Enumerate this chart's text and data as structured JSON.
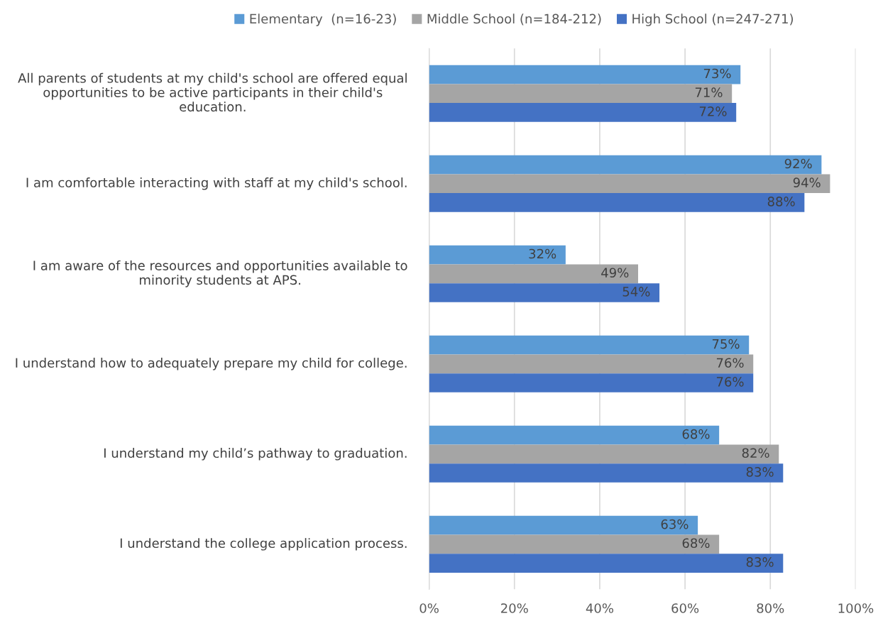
{
  "chart_data": {
    "type": "bar",
    "orientation": "horizontal",
    "categories": [
      "All parents of students at my child's school are offered equal opportunities to be active participants in their child's education.",
      "I am comfortable interacting with staff at my child's school.",
      "I am aware of the resources and opportunities available to minority students at APS.",
      "I understand how to adequately prepare my child for college.",
      "I understand my child’s pathway to graduation.",
      "I understand the college application process."
    ],
    "series": [
      {
        "name": "Elementary  (n=16-23)",
        "color": "#5b9bd5",
        "values": [
          73,
          92,
          32,
          75,
          68,
          63
        ],
        "value_labels": [
          "73%",
          "92%",
          "32%",
          "75%",
          "68%",
          "63%"
        ]
      },
      {
        "name": "Middle School (n=184-212)",
        "color": "#a5a5a5",
        "values": [
          71,
          94,
          49,
          76,
          82,
          68
        ],
        "value_labels": [
          "71%",
          "94%",
          "49%",
          "76%",
          "82%",
          "68%"
        ]
      },
      {
        "name": "High School (n=247-271)",
        "color": "#4472c4",
        "values": [
          72,
          88,
          54,
          76,
          83,
          83
        ],
        "value_labels": [
          "72%",
          "88%",
          "54%",
          "76%",
          "83%",
          "83%"
        ]
      }
    ],
    "xlim": [
      0,
      100
    ],
    "xticks": [
      {
        "value": 0,
        "label": "0%"
      },
      {
        "value": 20,
        "label": "20%"
      },
      {
        "value": 40,
        "label": "40%"
      },
      {
        "value": 60,
        "label": "60%"
      },
      {
        "value": 80,
        "label": "80%"
      },
      {
        "value": 100,
        "label": "100%"
      }
    ],
    "grid": "x",
    "legend": "top"
  }
}
